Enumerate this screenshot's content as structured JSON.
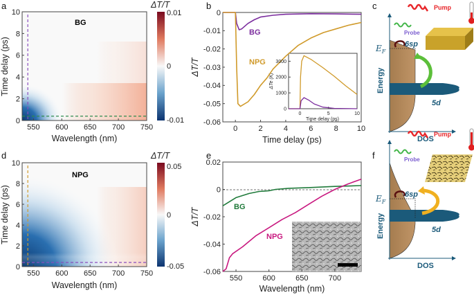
{
  "panels": {
    "a": "a",
    "b": "b",
    "c": "c",
    "d": "d",
    "e": "e",
    "f": "f"
  },
  "chart_data": [
    {
      "panel": "a",
      "type": "heatmap",
      "sample_label": "BG",
      "xlabel": "Wavelength (nm)",
      "ylabel": "Time delay (ps)",
      "xlim": [
        530,
        750
      ],
      "ylim": [
        0,
        10
      ],
      "xticks": [
        550,
        600,
        650,
        700,
        750
      ],
      "yticks": [
        0,
        2,
        4,
        6,
        8,
        10
      ],
      "colorbar": {
        "title": "ΔT/T",
        "clim": [
          -0.01,
          0.01
        ],
        "ticks": [
          "0.01",
          "0",
          "-0.01"
        ],
        "low_color": "#0c3f77",
        "mid_color": "#f8f8f8",
        "high_color": "#8f0a1f"
      },
      "cuts": {
        "wavelength_nm": 540,
        "wavelength_color": "#8a4dbd",
        "time_ps": 0.4,
        "time_color": "#2e8b4e"
      }
    },
    {
      "panel": "b",
      "type": "line",
      "xlabel": "Time delay (ps)",
      "ylabel": "ΔT/T",
      "xlim": [
        -1,
        10
      ],
      "ylim": [
        -0.06,
        0
      ],
      "xticks": [
        0,
        2,
        4,
        6,
        8,
        10
      ],
      "yticks": [
        0,
        -0.01,
        -0.02,
        -0.03,
        -0.04,
        -0.05,
        -0.06
      ],
      "ytick_labels": [
        "0",
        "-0.01",
        "-0.02",
        "-0.03",
        "-0.04",
        "-0.05",
        "-0.06"
      ],
      "series": [
        {
          "name": "BG",
          "color": "#7b2d9e",
          "x": [
            -1,
            0,
            0.1,
            0.3,
            0.5,
            1,
            1.5,
            2,
            3,
            4,
            6,
            8,
            10
          ],
          "y": [
            0,
            0,
            -0.006,
            -0.0095,
            -0.009,
            -0.006,
            -0.004,
            -0.0025,
            -0.0015,
            -0.001,
            -0.0007,
            -0.0008,
            -0.001
          ]
        },
        {
          "name": "NPG",
          "color": "#d09a2a",
          "x": [
            -1,
            0,
            0.1,
            0.2,
            0.4,
            1,
            1.5,
            2,
            2.5,
            3,
            4,
            5,
            6,
            7,
            8,
            9,
            10
          ],
          "y": [
            0,
            0,
            -0.03,
            -0.05,
            -0.0515,
            -0.049,
            -0.045,
            -0.04,
            -0.036,
            -0.031,
            -0.024,
            -0.018,
            -0.014,
            -0.011,
            -0.009,
            -0.007,
            -0.0055
          ]
        }
      ],
      "inset": {
        "xlabel": "Time delay (ps)",
        "ylabel": "ΔTe (K)",
        "xlim": [
          -2,
          10
        ],
        "ylim": [
          0,
          3500
        ],
        "xticks": [
          0,
          5,
          10
        ],
        "yticks": [
          0,
          1000,
          2000,
          3000
        ],
        "series": [
          {
            "name": "NPG",
            "color": "#d09a2a",
            "x": [
              -2,
              0,
              0.1,
              0.3,
              0.7,
              2,
              4,
              6,
              8,
              10
            ],
            "y": [
              0,
              0,
              2000,
              3000,
              3350,
              3100,
              2600,
              2050,
              1450,
              900
            ]
          },
          {
            "name": "BG",
            "color": "#7b2d9e",
            "x": [
              -2,
              0,
              0.2,
              0.7,
              1.5,
              2.5,
              4,
              6,
              10
            ],
            "y": [
              0,
              0,
              500,
              700,
              550,
              300,
              100,
              20,
              0
            ]
          }
        ]
      }
    },
    {
      "panel": "d",
      "type": "heatmap",
      "sample_label": "NPG",
      "xlabel": "Wavelength (nm)",
      "ylabel": "Time delay (ps)",
      "xlim": [
        530,
        750
      ],
      "ylim": [
        0,
        10
      ],
      "xticks": [
        550,
        600,
        650,
        700,
        750
      ],
      "yticks": [
        0,
        2,
        4,
        6,
        8,
        10
      ],
      "colorbar": {
        "title": "ΔT/T",
        "clim": [
          -0.05,
          0.05
        ],
        "ticks": [
          "0.05",
          "0",
          "-0.05"
        ],
        "low_color": "#0c3f77",
        "mid_color": "#f8f8f8",
        "high_color": "#8f0a1f"
      },
      "cuts": {
        "wavelength_nm": 540,
        "wavelength_color": "#d09a2a",
        "time_ps": 0.4,
        "time_color": "#8a4dbd"
      }
    },
    {
      "panel": "e",
      "type": "line",
      "xlabel": "Wavelength (nm)",
      "ylabel": "ΔT/T",
      "xlim": [
        530,
        740
      ],
      "ylim": [
        -0.06,
        0.02
      ],
      "xticks": [
        550,
        600,
        650,
        700
      ],
      "yticks": [
        0.02,
        0,
        -0.02,
        -0.04,
        -0.06
      ],
      "ytick_labels": [
        "0.02",
        "0",
        "-0.02",
        "-0.04",
        "-0.06"
      ],
      "series": [
        {
          "name": "BG",
          "color": "#1f7a3a",
          "x": [
            530,
            540,
            550,
            560,
            570,
            585,
            600,
            610,
            630,
            660,
            700,
            740
          ],
          "y": [
            -0.012,
            -0.009,
            -0.006,
            -0.0045,
            -0.003,
            -0.0015,
            -0.001,
            0,
            0.0008,
            0.0013,
            0.0022,
            0.0028
          ]
        },
        {
          "name": "NPG",
          "color": "#c8187f",
          "x": [
            530,
            535,
            540,
            545,
            560,
            580,
            600,
            620,
            640,
            660,
            680,
            700,
            720,
            740
          ],
          "y": [
            -0.06,
            -0.058,
            -0.05,
            -0.047,
            -0.042,
            -0.034,
            -0.028,
            -0.022,
            -0.017,
            -0.011,
            -0.005,
            0,
            0.004,
            0.0075
          ]
        }
      ]
    }
  ],
  "diagrams": {
    "pump": "Pump",
    "probe": "Probe",
    "fermi": "E",
    "fermi_sub": "F",
    "sp_band": "6sp",
    "d_band": "5d",
    "ylabel": "Energy",
    "xlabel": "DOS",
    "colors": {
      "dos": "#b4895a",
      "d_band": "#1b5a7a",
      "pump": "#e8262a",
      "arrow_c": "#5cbf3a",
      "arrow_f": "#f0b020",
      "text": "#1b5a7a"
    }
  }
}
